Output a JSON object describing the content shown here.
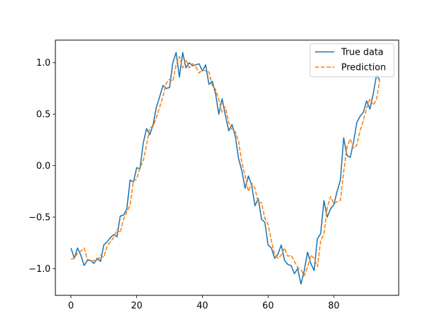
{
  "chart_data": {
    "type": "line",
    "title": "",
    "xlabel": "",
    "ylabel": "",
    "xlim": [
      -4.75,
      99.75
    ],
    "ylim": [
      -1.26,
      1.22
    ],
    "xticks": [
      0,
      20,
      40,
      60,
      80
    ],
    "yticks": [
      -1.0,
      -0.5,
      0.0,
      0.5,
      1.0
    ],
    "xtick_labels": [
      "0",
      "20",
      "40",
      "60",
      "80"
    ],
    "ytick_labels": [
      "−1.0",
      "−0.5",
      "0.0",
      "0.5",
      "1.0"
    ],
    "grid": false,
    "legend_position": "top-right",
    "series": [
      {
        "name": "True data",
        "color": "#1f77b4",
        "style": "solid",
        "values": [
          -0.8,
          -0.9,
          -0.8,
          -0.87,
          -0.97,
          -0.92,
          -0.92,
          -0.95,
          -0.9,
          -0.93,
          -0.77,
          -0.74,
          -0.7,
          -0.67,
          -0.69,
          -0.49,
          -0.48,
          -0.42,
          -0.14,
          -0.16,
          -0.02,
          -0.03,
          0.22,
          0.36,
          0.3,
          0.4,
          0.57,
          0.67,
          0.78,
          0.75,
          0.76,
          1.0,
          1.1,
          0.86,
          1.1,
          0.95,
          1.0,
          0.97,
          0.98,
          0.99,
          0.92,
          0.98,
          0.79,
          0.82,
          0.7,
          0.5,
          0.65,
          0.49,
          0.34,
          0.4,
          0.29,
          0.07,
          -0.05,
          -0.22,
          -0.1,
          -0.19,
          -0.39,
          -0.32,
          -0.52,
          -0.55,
          -0.77,
          -0.8,
          -0.9,
          -0.86,
          -0.77,
          -0.92,
          -0.96,
          -0.97,
          -1.05,
          -1.0,
          -1.15,
          -1.02,
          -0.84,
          -0.95,
          -1.02,
          -0.71,
          -0.66,
          -0.34,
          -0.5,
          -0.42,
          -0.38,
          -0.25,
          -0.14,
          0.27,
          0.1,
          0.08,
          0.23,
          0.42,
          0.48,
          0.52,
          0.63,
          0.55,
          0.7,
          0.88,
          0.83
        ]
      },
      {
        "name": "Prediction",
        "color": "#ff7f0e",
        "style": "dashed",
        "values": [
          -0.91,
          -0.9,
          -0.85,
          -0.83,
          -0.8,
          -0.91,
          -0.92,
          -0.92,
          -0.93,
          -0.87,
          -0.89,
          -0.78,
          -0.74,
          -0.7,
          -0.62,
          -0.65,
          -0.52,
          -0.45,
          -0.38,
          -0.15,
          -0.13,
          -0.02,
          0.05,
          0.2,
          0.37,
          0.38,
          0.47,
          0.57,
          0.67,
          0.8,
          0.84,
          0.82,
          0.98,
          1.06,
          0.95,
          1.03,
          0.95,
          0.99,
          0.96,
          0.9,
          0.93,
          0.92,
          0.91,
          0.78,
          0.74,
          0.64,
          0.52,
          0.57,
          0.42,
          0.35,
          0.33,
          0.24,
          0.03,
          -0.1,
          -0.25,
          -0.17,
          -0.22,
          -0.36,
          -0.36,
          -0.51,
          -0.57,
          -0.73,
          -0.86,
          -0.9,
          -0.87,
          -0.8,
          -0.88,
          -0.87,
          -0.93,
          -0.99,
          -1.01,
          -1.07,
          -0.99,
          -0.87,
          -0.9,
          -0.98,
          -0.73,
          -0.66,
          -0.41,
          -0.3,
          -0.37,
          -0.35,
          -0.34,
          -0.06,
          0.18,
          0.26,
          0.17,
          0.2,
          0.34,
          0.44,
          0.56,
          0.65,
          0.59,
          0.64,
          0.84
        ]
      }
    ]
  }
}
